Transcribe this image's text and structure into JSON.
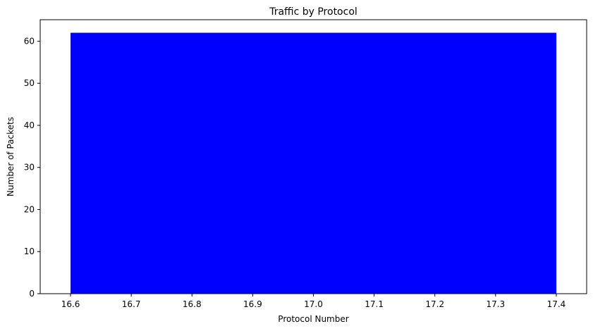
{
  "chart_data": {
    "type": "bar",
    "title": "Traffic by Protocol",
    "xlabel": "Protocol Number",
    "ylabel": "Number of Packets",
    "bars": [
      {
        "x": 17,
        "width": 0.8,
        "value": 62
      }
    ],
    "xlim": [
      16.55,
      17.45
    ],
    "ylim": [
      0,
      65.1
    ],
    "xticks": [
      16.6,
      16.7,
      16.8,
      16.9,
      17.0,
      17.1,
      17.2,
      17.3,
      17.4
    ],
    "xtick_labels": [
      "16.6",
      "16.7",
      "16.8",
      "16.9",
      "17.0",
      "17.1",
      "17.2",
      "17.3",
      "17.4"
    ],
    "yticks": [
      0,
      10,
      20,
      30,
      40,
      50,
      60
    ],
    "ytick_labels": [
      "0",
      "10",
      "20",
      "30",
      "40",
      "50",
      "60"
    ],
    "bar_color": "#0000ff",
    "grid": false,
    "legend": "none"
  }
}
